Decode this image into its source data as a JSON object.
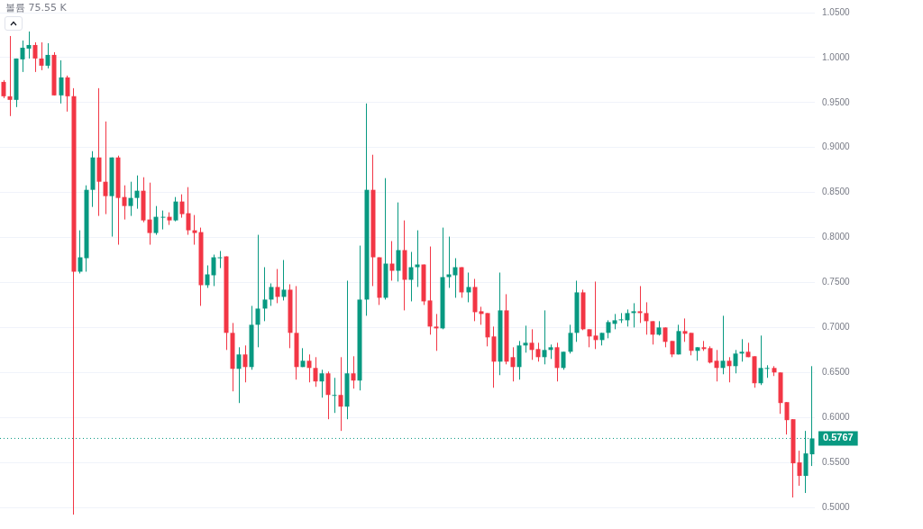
{
  "chart_data": {
    "type": "candlestick",
    "annotations": [
      "볼륨 75.55 K"
    ],
    "categories": [
      null,
      null,
      null,
      null,
      null,
      null,
      null,
      null,
      null,
      null,
      null,
      null,
      null,
      null,
      null,
      null,
      null,
      null,
      null,
      null,
      null,
      null,
      null,
      null,
      null,
      null,
      null,
      null,
      null,
      null,
      null,
      null,
      null,
      null,
      null,
      null,
      null,
      null,
      null,
      null,
      null,
      null,
      null,
      null,
      null,
      null,
      null,
      null,
      null,
      null,
      null,
      null,
      null,
      null,
      null,
      null,
      null,
      null,
      null,
      null,
      null,
      null,
      null,
      null,
      null,
      null,
      null,
      null,
      null,
      null,
      null,
      null,
      null,
      null,
      null,
      null,
      null,
      null,
      null,
      null,
      null,
      null,
      null,
      null,
      null,
      null,
      null,
      null,
      null,
      null,
      null,
      null,
      null,
      null,
      null,
      null,
      null,
      null,
      null,
      null,
      null,
      null,
      null,
      null,
      null,
      null,
      null,
      null,
      null,
      null,
      null,
      null,
      null,
      null,
      null,
      null,
      null,
      null,
      null,
      null,
      null,
      null,
      null,
      null,
      null,
      null,
      null,
      null
    ],
    "ohlc": [
      [
        0.973,
        0.975,
        0.955,
        0.957
      ],
      [
        0.957,
        1.024,
        0.935,
        0.953
      ],
      [
        0.953,
        0.999,
        0.945,
        0.999
      ],
      [
        0.998,
        1.019,
        0.984,
        1.011
      ],
      [
        1.01,
        1.029,
        0.999,
        1.014
      ],
      [
        1.014,
        1.017,
        0.984,
        0.999
      ],
      [
        0.999,
        1.017,
        0.986,
        0.991
      ],
      [
        0.991,
        1.016,
        0.988,
        1.003
      ],
      [
        1.003,
        1.006,
        0.958,
        0.958
      ],
      [
        0.958,
        0.997,
        0.949,
        0.978
      ],
      [
        0.978,
        0.98,
        0.94,
        0.957
      ],
      [
        0.957,
        0.966,
        0.492,
        0.762
      ],
      [
        0.762,
        0.808,
        0.76,
        0.778
      ],
      [
        0.777,
        0.858,
        0.762,
        0.853
      ],
      [
        0.853,
        0.896,
        0.834,
        0.889
      ],
      [
        0.889,
        0.966,
        0.824,
        0.862
      ],
      [
        0.862,
        0.929,
        0.826,
        0.846
      ],
      [
        0.846,
        0.889,
        0.801,
        0.889
      ],
      [
        0.889,
        0.891,
        0.792,
        0.844
      ],
      [
        0.845,
        0.858,
        0.82,
        0.835
      ],
      [
        0.835,
        0.862,
        0.824,
        0.844
      ],
      [
        0.844,
        0.869,
        0.832,
        0.852
      ],
      [
        0.852,
        0.867,
        0.817,
        0.819
      ],
      [
        0.82,
        0.861,
        0.792,
        0.805
      ],
      [
        0.805,
        0.835,
        0.803,
        0.823
      ],
      [
        0.822,
        0.83,
        0.809,
        0.823
      ],
      [
        0.823,
        0.828,
        0.814,
        0.819
      ],
      [
        0.819,
        0.845,
        0.818,
        0.84
      ],
      [
        0.84,
        0.848,
        0.822,
        0.826
      ],
      [
        0.827,
        0.856,
        0.803,
        0.808
      ],
      [
        0.808,
        0.825,
        0.792,
        0.805
      ],
      [
        0.806,
        0.811,
        0.724,
        0.747
      ],
      [
        0.747,
        0.769,
        0.744,
        0.759
      ],
      [
        0.758,
        0.781,
        0.746,
        0.778
      ],
      [
        0.777,
        0.785,
        0.766,
        0.778
      ],
      [
        0.779,
        0.779,
        0.675,
        0.694
      ],
      [
        0.694,
        0.705,
        0.629,
        0.654
      ],
      [
        0.654,
        0.678,
        0.616,
        0.67
      ],
      [
        0.67,
        0.68,
        0.639,
        0.656
      ],
      [
        0.656,
        0.724,
        0.653,
        0.703
      ],
      [
        0.703,
        0.803,
        0.678,
        0.721
      ],
      [
        0.721,
        0.767,
        0.707,
        0.731
      ],
      [
        0.731,
        0.749,
        0.724,
        0.745
      ],
      [
        0.745,
        0.765,
        0.727,
        0.734
      ],
      [
        0.734,
        0.775,
        0.73,
        0.742
      ],
      [
        0.742,
        0.748,
        0.677,
        0.694
      ],
      [
        0.694,
        0.746,
        0.642,
        0.656
      ],
      [
        0.656,
        0.677,
        0.656,
        0.663
      ],
      [
        0.663,
        0.67,
        0.639,
        0.655
      ],
      [
        0.655,
        0.667,
        0.634,
        0.64
      ],
      [
        0.64,
        0.653,
        0.622,
        0.649
      ],
      [
        0.649,
        0.651,
        0.598,
        0.625
      ],
      [
        0.624,
        0.644,
        0.605,
        0.625
      ],
      [
        0.625,
        0.667,
        0.585,
        0.612
      ],
      [
        0.612,
        0.752,
        0.598,
        0.649
      ],
      [
        0.649,
        0.668,
        0.632,
        0.641
      ],
      [
        0.641,
        0.791,
        0.63,
        0.731
      ],
      [
        0.731,
        0.949,
        0.713,
        0.853
      ],
      [
        0.853,
        0.892,
        0.746,
        0.778
      ],
      [
        0.778,
        0.778,
        0.725,
        0.733
      ],
      [
        0.733,
        0.866,
        0.731,
        0.771
      ],
      [
        0.771,
        0.796,
        0.752,
        0.763
      ],
      [
        0.763,
        0.839,
        0.751,
        0.786
      ],
      [
        0.786,
        0.819,
        0.719,
        0.753
      ],
      [
        0.753,
        0.784,
        0.729,
        0.767
      ],
      [
        0.767,
        0.808,
        0.745,
        0.77
      ],
      [
        0.77,
        0.77,
        0.725,
        0.729
      ],
      [
        0.73,
        0.79,
        0.692,
        0.701
      ],
      [
        0.701,
        0.715,
        0.674,
        0.699
      ],
      [
        0.699,
        0.811,
        0.698,
        0.756
      ],
      [
        0.756,
        0.801,
        0.744,
        0.759
      ],
      [
        0.758,
        0.777,
        0.733,
        0.767
      ],
      [
        0.767,
        0.767,
        0.733,
        0.739
      ],
      [
        0.739,
        0.761,
        0.728,
        0.745
      ],
      [
        0.745,
        0.754,
        0.707,
        0.717
      ],
      [
        0.718,
        0.723,
        0.703,
        0.715
      ],
      [
        0.716,
        0.716,
        0.679,
        0.689
      ],
      [
        0.69,
        0.701,
        0.633,
        0.662
      ],
      [
        0.662,
        0.761,
        0.647,
        0.719
      ],
      [
        0.719,
        0.737,
        0.659,
        0.662
      ],
      [
        0.667,
        0.678,
        0.64,
        0.656
      ],
      [
        0.656,
        0.685,
        0.642,
        0.68
      ],
      [
        0.68,
        0.702,
        0.672,
        0.683
      ],
      [
        0.683,
        0.698,
        0.664,
        0.675
      ],
      [
        0.676,
        0.683,
        0.662,
        0.667
      ],
      [
        0.667,
        0.719,
        0.659,
        0.675
      ],
      [
        0.675,
        0.681,
        0.665,
        0.678
      ],
      [
        0.678,
        0.683,
        0.64,
        0.655
      ],
      [
        0.655,
        0.673,
        0.653,
        0.673
      ],
      [
        0.673,
        0.703,
        0.671,
        0.694
      ],
      [
        0.694,
        0.752,
        0.684,
        0.739
      ],
      [
        0.739,
        0.742,
        0.697,
        0.698
      ],
      [
        0.698,
        0.698,
        0.678,
        0.69
      ],
      [
        0.691,
        0.751,
        0.676,
        0.686
      ],
      [
        0.686,
        0.694,
        0.68,
        0.694
      ],
      [
        0.694,
        0.708,
        0.688,
        0.706
      ],
      [
        0.704,
        0.715,
        0.698,
        0.708
      ],
      [
        0.708,
        0.716,
        0.705,
        0.709
      ],
      [
        0.708,
        0.72,
        0.701,
        0.716
      ],
      [
        0.716,
        0.727,
        0.7,
        0.718
      ],
      [
        0.718,
        0.746,
        0.705,
        0.716
      ],
      [
        0.716,
        0.728,
        0.692,
        0.707
      ],
      [
        0.707,
        0.707,
        0.681,
        0.692
      ],
      [
        0.692,
        0.707,
        0.691,
        0.7
      ],
      [
        0.7,
        0.7,
        0.678,
        0.684
      ],
      [
        0.685,
        0.685,
        0.667,
        0.67
      ],
      [
        0.67,
        0.703,
        0.67,
        0.696
      ],
      [
        0.696,
        0.71,
        0.684,
        0.693
      ],
      [
        0.694,
        0.694,
        0.669,
        0.674
      ],
      [
        0.674,
        0.678,
        0.663,
        0.678
      ],
      [
        0.678,
        0.685,
        0.674,
        0.676
      ],
      [
        0.677,
        0.679,
        0.66,
        0.661
      ],
      [
        0.663,
        0.675,
        0.64,
        0.655
      ],
      [
        0.655,
        0.713,
        0.648,
        0.663
      ],
      [
        0.663,
        0.667,
        0.639,
        0.657
      ],
      [
        0.657,
        0.675,
        0.649,
        0.671
      ],
      [
        0.671,
        0.687,
        0.662,
        0.673
      ],
      [
        0.673,
        0.683,
        0.667,
        0.667
      ],
      [
        0.668,
        0.668,
        0.633,
        0.638
      ],
      [
        0.638,
        0.691,
        0.636,
        0.655
      ],
      [
        0.654,
        0.658,
        0.644,
        0.655
      ],
      [
        0.655,
        0.657,
        0.646,
        0.65
      ],
      [
        0.65,
        0.65,
        0.604,
        0.616
      ],
      [
        0.617,
        0.617,
        0.581,
        0.597
      ],
      [
        0.598,
        0.598,
        0.511,
        0.549
      ],
      [
        0.55,
        0.563,
        0.524,
        0.535
      ],
      [
        0.535,
        0.585,
        0.516,
        0.56
      ],
      [
        0.559,
        0.657,
        0.546,
        0.5767
      ]
    ],
    "ylim": [
      0.49,
      1.05
    ],
    "yticks": [
      {
        "value": 0.5,
        "label": "0.5000"
      },
      {
        "value": 0.55,
        "label": "0.5500"
      },
      {
        "value": 0.6,
        "label": "0.6000"
      },
      {
        "value": 0.65,
        "label": "0.6500"
      },
      {
        "value": 0.7,
        "label": "0.7000"
      },
      {
        "value": 0.75,
        "label": "0.7500"
      },
      {
        "value": 0.8,
        "label": "0.8000"
      },
      {
        "value": 0.85,
        "label": "0.8500"
      },
      {
        "value": 0.9,
        "label": "0.9000"
      },
      {
        "value": 0.95,
        "label": "0.9500"
      },
      {
        "value": 1.0,
        "label": "1.0000"
      },
      {
        "value": 1.05,
        "label": "1.0500"
      }
    ],
    "ref_lines": [
      {
        "axis": "y",
        "value": 0.5767,
        "label": "0.5767",
        "color": "#089981",
        "line_style": "dotted"
      }
    ],
    "grid": "y",
    "legend": false
  }
}
